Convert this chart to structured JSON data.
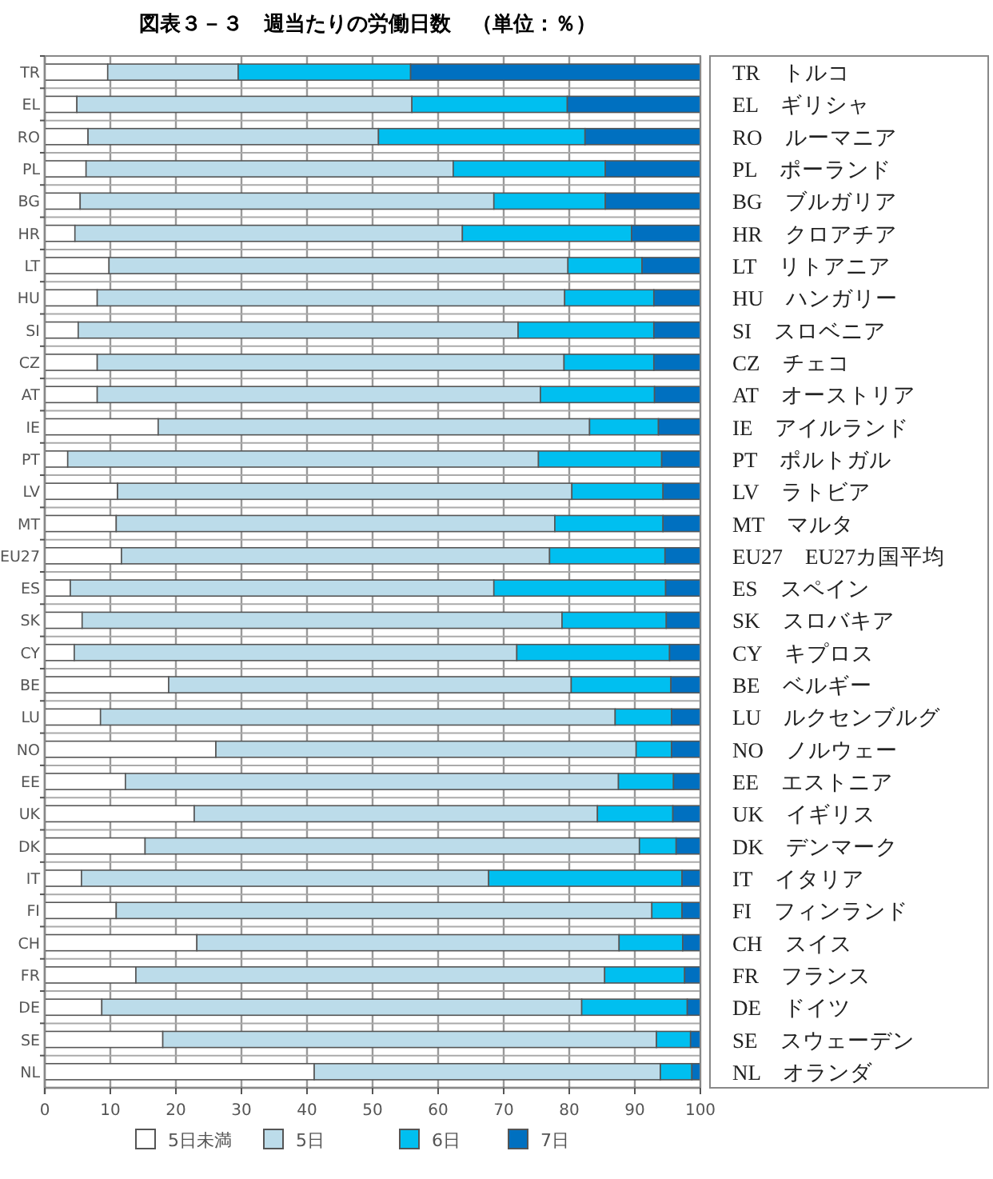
{
  "chart_data": {
    "type": "bar",
    "orientation": "horizontal",
    "stacked": true,
    "title": "図表３－３　週当たりの労働日数　（単位：％）",
    "categories": [
      "TR",
      "EL",
      "RO",
      "PL",
      "BG",
      "HR",
      "LT",
      "HU",
      "SI",
      "CZ",
      "AT",
      "IE",
      "PT",
      "LV",
      "MT",
      "EU27",
      "ES",
      "SK",
      "CY",
      "BE",
      "LU",
      "NO",
      "EE",
      "UK",
      "DK",
      "IT",
      "FI",
      "CH",
      "FR",
      "DE",
      "SE",
      "NL"
    ],
    "series": [
      {
        "name": "5日未満",
        "color": "#ffffff",
        "values": [
          9.6,
          4.9,
          6.6,
          6.3,
          5.4,
          4.6,
          9.8,
          8.0,
          5.1,
          8.0,
          8.0,
          17.3,
          3.5,
          11.1,
          10.9,
          11.7,
          3.9,
          5.7,
          4.5,
          18.9,
          8.5,
          26.1,
          12.3,
          22.8,
          15.3,
          5.6,
          10.9,
          23.2,
          13.9,
          8.7,
          18.0,
          41.1
        ]
      },
      {
        "name": "5日",
        "color": "#bcdcea",
        "values": [
          19.9,
          51.1,
          44.3,
          56.0,
          63.1,
          59.1,
          70.0,
          71.3,
          67.1,
          71.2,
          67.6,
          65.8,
          71.8,
          69.3,
          66.9,
          65.3,
          64.6,
          73.2,
          67.5,
          61.4,
          78.5,
          64.1,
          75.2,
          61.5,
          75.4,
          62.1,
          81.7,
          64.4,
          71.5,
          73.2,
          75.3,
          52.8
        ]
      },
      {
        "name": "6日",
        "color": "#00bff0",
        "values": [
          26.3,
          23.7,
          31.5,
          23.2,
          17.0,
          25.8,
          11.3,
          13.6,
          20.7,
          13.7,
          17.4,
          10.5,
          18.8,
          13.9,
          16.5,
          17.6,
          26.2,
          15.9,
          23.3,
          15.2,
          8.6,
          5.4,
          8.4,
          11.5,
          5.6,
          29.5,
          4.6,
          9.7,
          12.2,
          16.1,
          5.2,
          4.8
        ]
      },
      {
        "name": "7日",
        "color": "#0070c0",
        "values": [
          44.2,
          20.3,
          17.6,
          14.5,
          14.5,
          10.5,
          8.9,
          7.1,
          7.1,
          7.1,
          7.0,
          6.4,
          5.9,
          5.7,
          5.7,
          5.4,
          5.3,
          5.2,
          4.7,
          4.5,
          4.4,
          4.4,
          4.1,
          4.2,
          3.7,
          2.8,
          2.8,
          2.7,
          2.4,
          2.0,
          1.5,
          1.3
        ]
      }
    ],
    "xlim": [
      0,
      100
    ],
    "xticks": [
      0,
      10,
      20,
      30,
      40,
      50,
      60,
      70,
      80,
      90,
      100
    ],
    "grid": true,
    "legend": "bottom",
    "annotations": [
      "TR　トルコ",
      "EL　ギリシャ",
      "RO　ルーマニア",
      "PL　ポーランド",
      "BG　ブルガリア",
      "HR　クロアチア",
      "LT　リトアニア",
      "HU　ハンガリー",
      "SI　スロベニア",
      "CZ　チェコ",
      "AT　オーストリア",
      "IE　アイルランド",
      "PT　ポルトガル",
      "LV　ラトビア",
      "MT　マルタ",
      "EU27　EU27カ国平均",
      "ES　スペイン",
      "SK　スロバキア",
      "CY　キプロス",
      "BE　ベルギー",
      "LU　ルクセンブルグ",
      "NO　ノルウェー",
      "EE　エストニア",
      "UK　イギリス",
      "DK　デンマーク",
      "IT　イタリア",
      "FI　フィンランド",
      "CH　スイス",
      "FR　フランス",
      "DE　ドイツ",
      "SE　スウェーデン",
      "NL　オランダ"
    ]
  }
}
